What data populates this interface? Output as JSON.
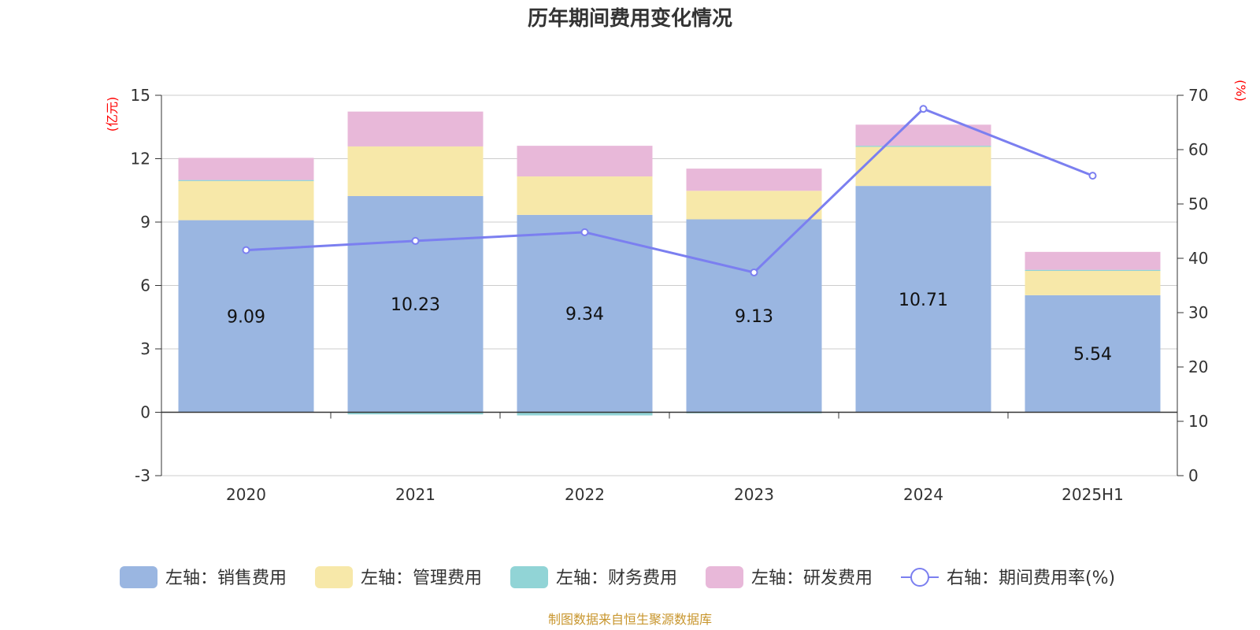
{
  "chart_data": {
    "type": "bar",
    "title": "历年期间费用变化情况",
    "categories": [
      "2020",
      "2021",
      "2022",
      "2023",
      "2024",
      "2025H1"
    ],
    "series": [
      {
        "name": "左轴：销售费用",
        "axis": "left",
        "kind": "bar",
        "values": [
          9.09,
          10.23,
          9.34,
          9.13,
          10.71,
          5.54
        ],
        "color": "#9ab6e1"
      },
      {
        "name": "左轴：管理费用",
        "axis": "left",
        "kind": "bar",
        "values": [
          1.85,
          2.35,
          1.82,
          1.35,
          1.85,
          1.15
        ],
        "color": "#f7e8a9"
      },
      {
        "name": "左轴：财务费用",
        "axis": "left",
        "kind": "bar",
        "values": [
          0.05,
          -0.1,
          -0.15,
          -0.05,
          0.05,
          0.05
        ],
        "color": "#91d4d6"
      },
      {
        "name": "左轴：研发费用",
        "axis": "left",
        "kind": "bar",
        "values": [
          1.05,
          1.65,
          1.45,
          1.05,
          1.0,
          0.85
        ],
        "color": "#e8b8d9"
      },
      {
        "name": "右轴：期间费用率(%)",
        "axis": "right",
        "kind": "line",
        "values": [
          41.5,
          43.2,
          44.8,
          37.4,
          67.5,
          55.2
        ],
        "color": "#7b7ff0"
      }
    ],
    "bar_labels": [
      "9.09",
      "10.23",
      "9.34",
      "9.13",
      "10.71",
      "5.54"
    ],
    "left_axis": {
      "unit": "(亿元)",
      "ticks": [
        "15",
        "12",
        "9",
        "6",
        "3",
        "0",
        "-3"
      ],
      "range": [
        -3,
        15
      ]
    },
    "right_axis": {
      "unit": "(%)",
      "ticks": [
        "70",
        "60",
        "50",
        "40",
        "30",
        "20",
        "10",
        "0"
      ],
      "range": [
        0,
        70
      ]
    },
    "grid": true,
    "legend_position": "bottom",
    "source": "制图数据来自恒生聚源数据库"
  }
}
